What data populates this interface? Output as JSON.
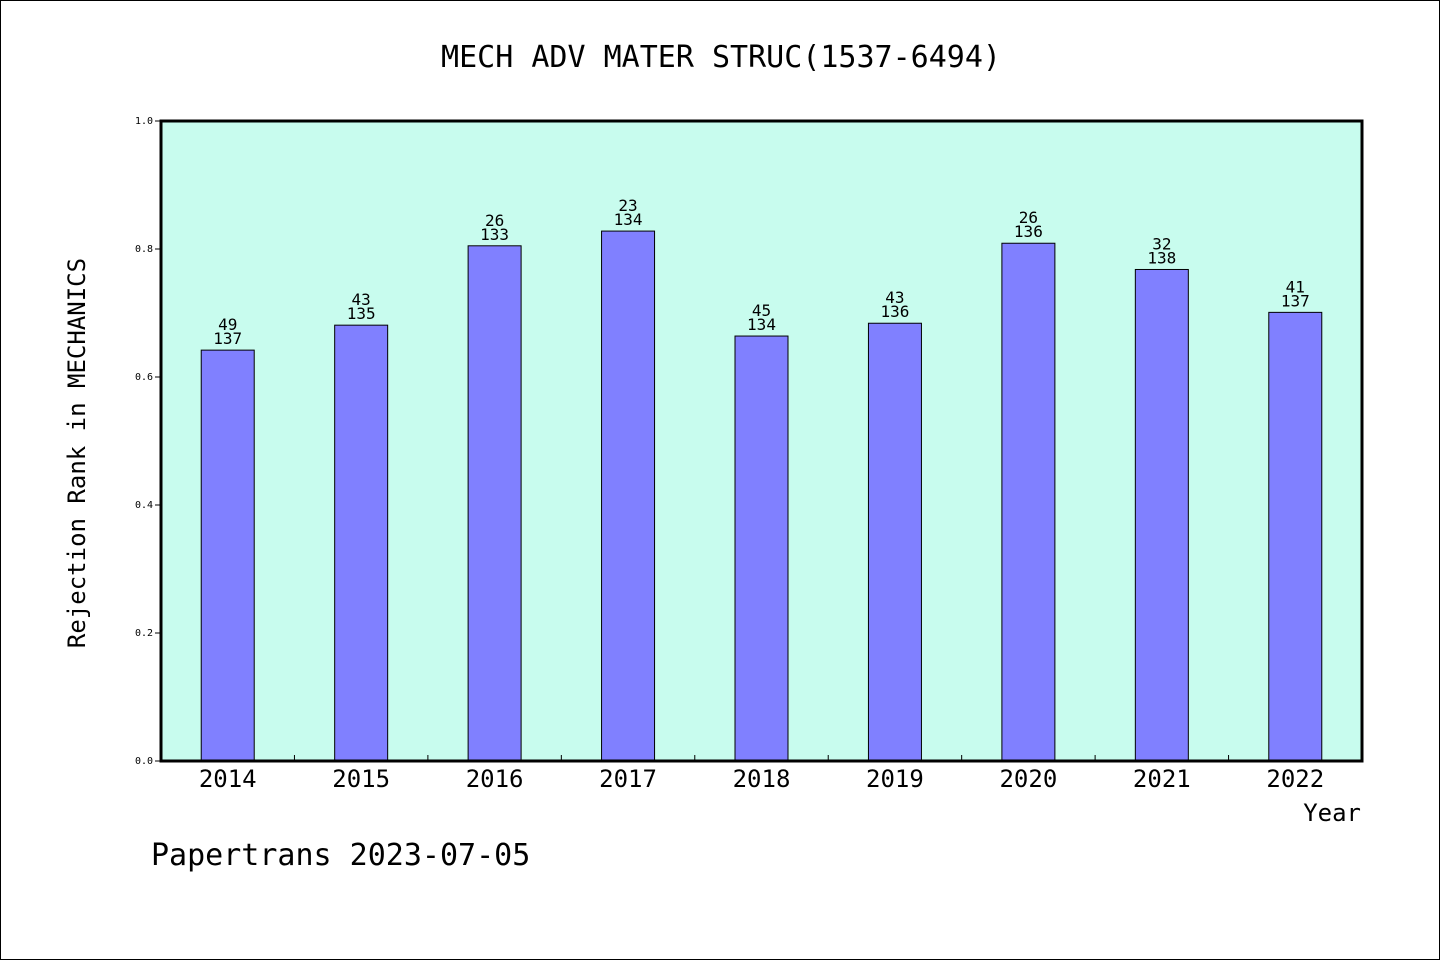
{
  "chart_data": {
    "type": "bar",
    "title": "MECH ADV MATER STRUC(1537-6494)",
    "xlabel": "Year",
    "ylabel": "Rejection Rank in MECHANICS",
    "categories": [
      "2014",
      "2015",
      "2016",
      "2017",
      "2018",
      "2019",
      "2020",
      "2021",
      "2022"
    ],
    "values": [
      0.642,
      0.681,
      0.805,
      0.828,
      0.664,
      0.684,
      0.809,
      0.768,
      0.701
    ],
    "rank_labels": [
      "49",
      "43",
      "26",
      "23",
      "45",
      "43",
      "26",
      "32",
      "41"
    ],
    "total_labels": [
      "137",
      "135",
      "133",
      "134",
      "134",
      "136",
      "136",
      "138",
      "137"
    ],
    "ylim": [
      0,
      1
    ],
    "yticks": [
      "0.0",
      "0.2",
      "0.4",
      "0.6",
      "0.8",
      "1.0"
    ],
    "grid": false,
    "colors": {
      "plot_background": "#c8fcee",
      "bar_fill": "#8080ff",
      "bar_stroke": "#000000"
    }
  },
  "footer": {
    "credit": "Papertrans 2023-07-05"
  }
}
